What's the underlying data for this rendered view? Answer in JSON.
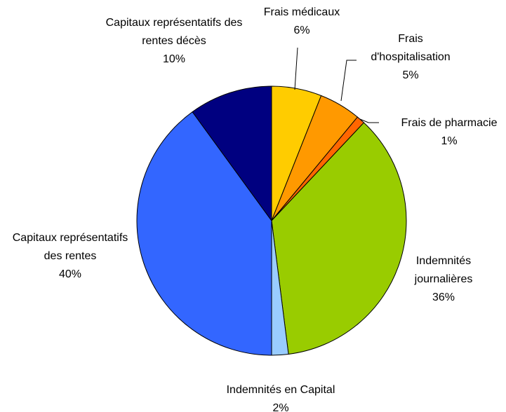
{
  "chart_data": {
    "type": "pie",
    "categories": [
      "Frais médicaux",
      "Frais d'hospitalisation",
      "Frais de pharmacie",
      "Indemnités journalières",
      "Indemnités en Capital",
      "Capitaux représentatifs des rentes",
      "Capitaux représentatifs des rentes décès"
    ],
    "values": [
      6,
      5,
      1,
      36,
      2,
      40,
      10
    ],
    "value_labels": [
      "6%",
      "5%",
      "1%",
      "36%",
      "2%",
      "40%",
      "10%"
    ],
    "colors": [
      "#ffcc00",
      "#ff9900",
      "#ff6600",
      "#99cc00",
      "#99ccff",
      "#3366ff",
      "#000080"
    ]
  }
}
